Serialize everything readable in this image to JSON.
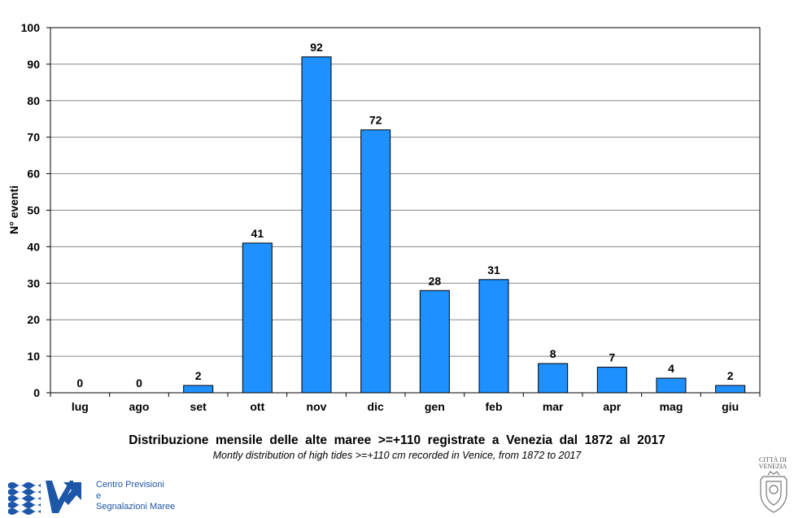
{
  "chart_data": {
    "type": "bar",
    "categories": [
      "lug",
      "ago",
      "set",
      "ott",
      "nov",
      "dic",
      "gen",
      "feb",
      "mar",
      "apr",
      "mag",
      "giu"
    ],
    "values": [
      0,
      0,
      2,
      41,
      92,
      72,
      28,
      31,
      8,
      7,
      4,
      2
    ],
    "data_labels": [
      "0",
      "0",
      "2",
      "41",
      "92",
      "72",
      "28",
      "31",
      "8",
      "7",
      "4",
      "2"
    ],
    "ylabel": "N° eventi",
    "xlabel": "",
    "ylim": [
      0,
      100
    ],
    "yticks": [
      0,
      10,
      20,
      30,
      40,
      50,
      60,
      70,
      80,
      90,
      100
    ],
    "grid": true,
    "title": "Distribuzione  mensile  delle  alte  maree  >=+110  registrate  a  Venezia  dal  1872  al  2017",
    "subtitle": "Montly distribution of high tides >=+110 cm recorded in Venice, from 1872 to 2017",
    "bar_color": "#1e90ff"
  },
  "logo": {
    "line1": "Centro Previsioni",
    "line2": "e",
    "line3": "Segnalazioni Maree",
    "color": "#1d57a8"
  },
  "crest": {
    "line1": "CITTÀ DI",
    "line2": "VENEZIA"
  }
}
